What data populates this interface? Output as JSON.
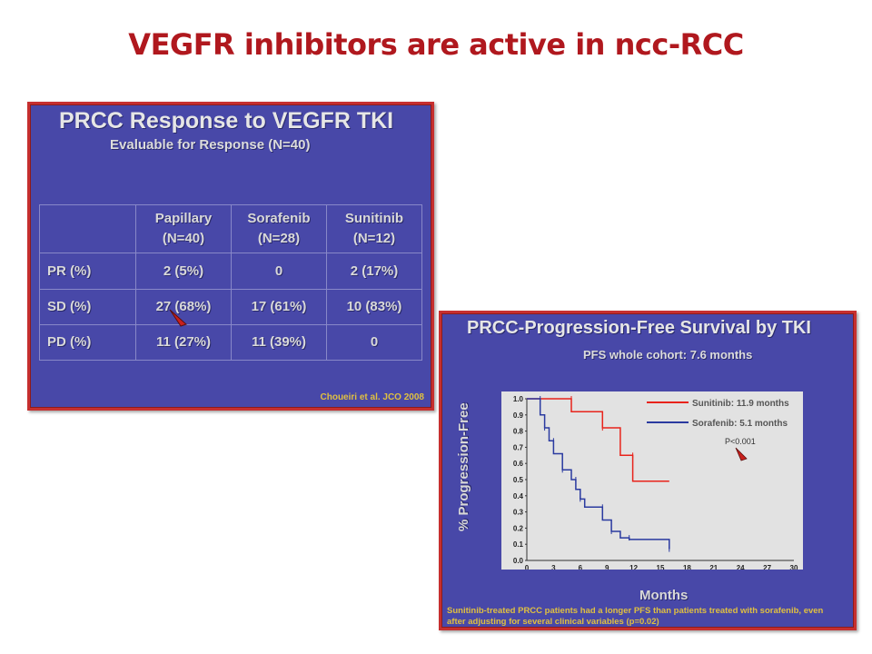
{
  "slide": {
    "title": "VEGFR inhibitors are active in ncc-RCC"
  },
  "response_panel": {
    "title": "PRCC Response to VEGFR TKI",
    "subtitle": "Evaluable for Response (N=40)",
    "columns": [
      {
        "name": "Papillary",
        "n": "(N=40)"
      },
      {
        "name": "Sorafenib",
        "n": "(N=28)"
      },
      {
        "name": "Sunitinib",
        "n": "(N=12)"
      }
    ],
    "rows": [
      {
        "label": "PR (%)",
        "values": [
          "2 (5%)",
          "0",
          "2 (17%)"
        ]
      },
      {
        "label": "SD (%)",
        "values": [
          "27 (68%)",
          "17 (61%)",
          "10 (83%)"
        ]
      },
      {
        "label": "PD (%)",
        "values": [
          "11 (27%)",
          "11 (39%)",
          "0"
        ]
      }
    ],
    "citation": "Choueiri et al. JCO 2008"
  },
  "pfs_panel": {
    "title": "PRCC-Progression-Free Survival by TKI",
    "subtitle": "PFS whole cohort: 7.6 months",
    "ylabel": "% Progression-Free",
    "xlabel": "Months",
    "pvalue": "P<0.001",
    "footnote_line1": "Sunitinib-treated PRCC patients had a longer PFS than patients treated with sorafenib, even",
    "footnote_line2": "after adjusting for several clinical variables (p=0.02)"
  },
  "chart_data": {
    "type": "line",
    "xlim": [
      0,
      30
    ],
    "ylim": [
      0,
      1.0
    ],
    "x_ticks": [
      "0",
      "3",
      "6",
      "9",
      "12",
      "15",
      "18",
      "21",
      "24",
      "27",
      "30"
    ],
    "y_ticks": [
      "0.0",
      "0.1",
      "0.2",
      "0.3",
      "0.4",
      "0.5",
      "0.6",
      "0.7",
      "0.8",
      "0.9",
      "1.0"
    ],
    "colors": {
      "sunitinib": "#e8231b",
      "sorafenib": "#2a3aa0"
    },
    "series": [
      {
        "name": "Sunitinib: 11.9 months",
        "color": "#e8231b",
        "steps": [
          [
            0,
            1.0
          ],
          [
            5,
            1.0
          ],
          [
            5,
            0.92
          ],
          [
            8.5,
            0.92
          ],
          [
            8.5,
            0.82
          ],
          [
            10.5,
            0.82
          ],
          [
            10.5,
            0.65
          ],
          [
            11.9,
            0.65
          ],
          [
            11.9,
            0.49
          ],
          [
            16,
            0.49
          ]
        ]
      },
      {
        "name": "Sorafenib: 5.1 months",
        "color": "#2a3aa0",
        "steps": [
          [
            0,
            1.0
          ],
          [
            1.5,
            1.0
          ],
          [
            1.5,
            0.9
          ],
          [
            2,
            0.9
          ],
          [
            2,
            0.82
          ],
          [
            2.5,
            0.82
          ],
          [
            2.5,
            0.74
          ],
          [
            3,
            0.74
          ],
          [
            3,
            0.66
          ],
          [
            4,
            0.66
          ],
          [
            4,
            0.56
          ],
          [
            5,
            0.56
          ],
          [
            5,
            0.5
          ],
          [
            5.5,
            0.5
          ],
          [
            5.5,
            0.44
          ],
          [
            6,
            0.44
          ],
          [
            6,
            0.38
          ],
          [
            6.5,
            0.38
          ],
          [
            6.5,
            0.33
          ],
          [
            8.5,
            0.33
          ],
          [
            8.5,
            0.25
          ],
          [
            9.5,
            0.25
          ],
          [
            9.5,
            0.18
          ],
          [
            10.5,
            0.18
          ],
          [
            10.5,
            0.14
          ],
          [
            11.5,
            0.14
          ],
          [
            11.5,
            0.13
          ],
          [
            16,
            0.13
          ],
          [
            16,
            0.07
          ]
        ]
      }
    ]
  }
}
